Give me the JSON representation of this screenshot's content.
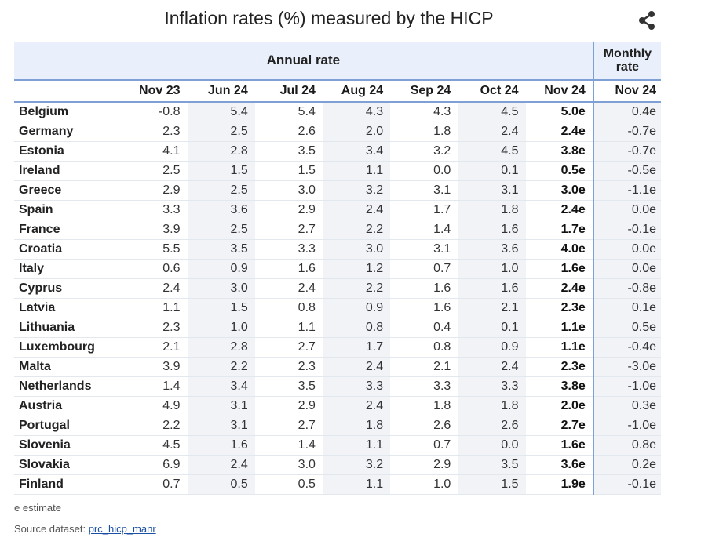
{
  "title": "Inflation rates (%) measured by the HICP",
  "share_icon": "share-icon",
  "header": {
    "annual": "Annual rate",
    "monthly": "Monthly rate",
    "periods": [
      "Nov 23",
      "Jun 24",
      "Jul 24",
      "Aug 24",
      "Sep 24",
      "Oct 24",
      "Nov 24",
      "Nov 24"
    ]
  },
  "rows": [
    {
      "country": "Belgium",
      "values": [
        "-0.8",
        "5.4",
        "5.4",
        "4.3",
        "4.3",
        "4.5",
        "5.0e",
        "0.4e"
      ]
    },
    {
      "country": "Germany",
      "values": [
        "2.3",
        "2.5",
        "2.6",
        "2.0",
        "1.8",
        "2.4",
        "2.4e",
        "-0.7e"
      ]
    },
    {
      "country": "Estonia",
      "values": [
        "4.1",
        "2.8",
        "3.5",
        "3.4",
        "3.2",
        "4.5",
        "3.8e",
        "-0.7e"
      ]
    },
    {
      "country": "Ireland",
      "values": [
        "2.5",
        "1.5",
        "1.5",
        "1.1",
        "0.0",
        "0.1",
        "0.5e",
        "-0.5e"
      ]
    },
    {
      "country": "Greece",
      "values": [
        "2.9",
        "2.5",
        "3.0",
        "3.2",
        "3.1",
        "3.1",
        "3.0e",
        "-1.1e"
      ]
    },
    {
      "country": "Spain",
      "values": [
        "3.3",
        "3.6",
        "2.9",
        "2.4",
        "1.7",
        "1.8",
        "2.4e",
        "0.0e"
      ]
    },
    {
      "country": "France",
      "values": [
        "3.9",
        "2.5",
        "2.7",
        "2.2",
        "1.4",
        "1.6",
        "1.7e",
        "-0.1e"
      ]
    },
    {
      "country": "Croatia",
      "values": [
        "5.5",
        "3.5",
        "3.3",
        "3.0",
        "3.1",
        "3.6",
        "4.0e",
        "0.0e"
      ]
    },
    {
      "country": "Italy",
      "values": [
        "0.6",
        "0.9",
        "1.6",
        "1.2",
        "0.7",
        "1.0",
        "1.6e",
        "0.0e"
      ]
    },
    {
      "country": "Cyprus",
      "values": [
        "2.4",
        "3.0",
        "2.4",
        "2.2",
        "1.6",
        "1.6",
        "2.4e",
        "-0.8e"
      ]
    },
    {
      "country": "Latvia",
      "values": [
        "1.1",
        "1.5",
        "0.8",
        "0.9",
        "1.6",
        "2.1",
        "2.3e",
        "0.1e"
      ]
    },
    {
      "country": "Lithuania",
      "values": [
        "2.3",
        "1.0",
        "1.1",
        "0.8",
        "0.4",
        "0.1",
        "1.1e",
        "0.5e"
      ]
    },
    {
      "country": "Luxembourg",
      "values": [
        "2.1",
        "2.8",
        "2.7",
        "1.7",
        "0.8",
        "0.9",
        "1.1e",
        "-0.4e"
      ]
    },
    {
      "country": "Malta",
      "values": [
        "3.9",
        "2.2",
        "2.3",
        "2.4",
        "2.1",
        "2.4",
        "2.3e",
        "-3.0e"
      ]
    },
    {
      "country": "Netherlands",
      "values": [
        "1.4",
        "3.4",
        "3.5",
        "3.3",
        "3.3",
        "3.3",
        "3.8e",
        "-1.0e"
      ]
    },
    {
      "country": "Austria",
      "values": [
        "4.9",
        "3.1",
        "2.9",
        "2.4",
        "1.8",
        "1.8",
        "2.0e",
        "0.3e"
      ]
    },
    {
      "country": "Portugal",
      "values": [
        "2.2",
        "3.1",
        "2.7",
        "1.8",
        "2.6",
        "2.6",
        "2.7e",
        "-1.0e"
      ]
    },
    {
      "country": "Slovenia",
      "values": [
        "4.5",
        "1.6",
        "1.4",
        "1.1",
        "0.7",
        "0.0",
        "1.6e",
        "0.8e"
      ]
    },
    {
      "country": "Slovakia",
      "values": [
        "6.9",
        "2.4",
        "3.0",
        "3.2",
        "2.9",
        "3.5",
        "3.6e",
        "0.2e"
      ]
    },
    {
      "country": "Finland",
      "values": [
        "0.7",
        "0.5",
        "0.5",
        "1.1",
        "1.0",
        "1.5",
        "1.9e",
        "-0.1e"
      ]
    }
  ],
  "footnote": "e estimate",
  "source": {
    "label": "Source dataset:",
    "link": "prc_hicp_manr"
  },
  "colors": {
    "header_bg": "#e9f0fb",
    "rule": "#7fa0d4",
    "shade": "#f1f3f6",
    "link": "#1a4fa3"
  }
}
